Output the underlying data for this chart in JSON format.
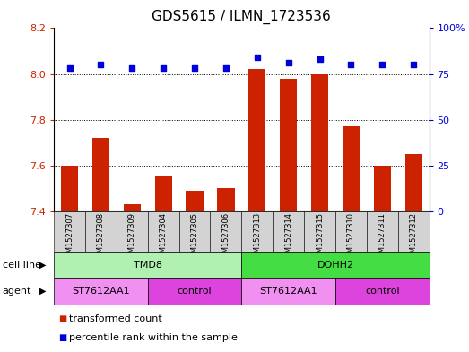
{
  "title": "GDS5615 / ILMN_1723536",
  "samples": [
    "GSM1527307",
    "GSM1527308",
    "GSM1527309",
    "GSM1527304",
    "GSM1527305",
    "GSM1527306",
    "GSM1527313",
    "GSM1527314",
    "GSM1527315",
    "GSM1527310",
    "GSM1527311",
    "GSM1527312"
  ],
  "transformed_counts": [
    7.6,
    7.72,
    7.43,
    7.55,
    7.49,
    7.5,
    8.02,
    7.98,
    8.0,
    7.77,
    7.6,
    7.65
  ],
  "percentile_ranks": [
    78,
    80,
    78,
    78,
    78,
    78,
    84,
    81,
    83,
    80,
    80,
    80
  ],
  "bar_color": "#cc2200",
  "dot_color": "#0000dd",
  "ylim_left": [
    7.4,
    8.2
  ],
  "ylim_right": [
    0,
    100
  ],
  "yticks_left": [
    7.4,
    7.6,
    7.8,
    8.0,
    8.2
  ],
  "yticks_right": [
    0,
    25,
    50,
    75,
    100
  ],
  "ytick_right_labels": [
    "0",
    "25",
    "50",
    "75",
    "100%"
  ],
  "hlines": [
    7.6,
    7.8,
    8.0
  ],
  "cell_line_groups": [
    {
      "label": "TMD8",
      "start": 0,
      "end": 6,
      "color": "#b0f0b0"
    },
    {
      "label": "DOHH2",
      "start": 6,
      "end": 12,
      "color": "#44dd44"
    }
  ],
  "agent_groups": [
    {
      "label": "ST7612AA1",
      "start": 0,
      "end": 3,
      "color": "#f090f0"
    },
    {
      "label": "control",
      "start": 3,
      "end": 6,
      "color": "#dd44dd"
    },
    {
      "label": "ST7612AA1",
      "start": 6,
      "end": 9,
      "color": "#f090f0"
    },
    {
      "label": "control",
      "start": 9,
      "end": 12,
      "color": "#dd44dd"
    }
  ],
  "cell_line_label": "cell line",
  "agent_label": "agent",
  "legend_items": [
    {
      "label": "transformed count",
      "color": "#cc2200"
    },
    {
      "label": "percentile rank within the sample",
      "color": "#0000dd"
    }
  ],
  "bg_color": "#ffffff",
  "tick_color_left": "#cc2200",
  "tick_color_right": "#0000dd",
  "sample_bg_color": "#d3d3d3",
  "title_fontsize": 11,
  "axis_fontsize": 8,
  "label_fontsize": 8,
  "sample_fontsize": 6,
  "legend_fontsize": 8
}
